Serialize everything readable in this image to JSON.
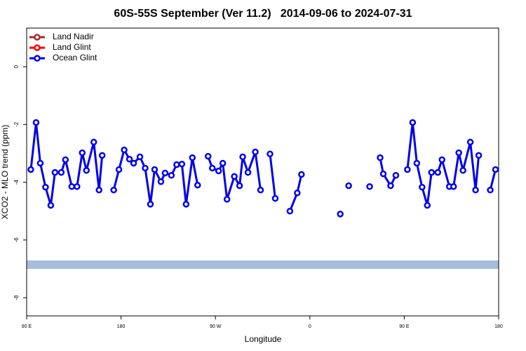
{
  "chart_data": {
    "type": "line",
    "title": "60S-55S September (Ver 11.2)   2014-09-06 to 2024-07-31",
    "x_label": "Longitude",
    "y_label": "XCO2 - MLO trend (ppm)",
    "xlim": [
      90,
      540
    ],
    "ylim": [
      -8.63,
      1.34
    ],
    "xticks": [
      {
        "value": 90,
        "label": "90 E"
      },
      {
        "value": 180,
        "label": "180"
      },
      {
        "value": 270,
        "label": "90 W"
      },
      {
        "value": 360,
        "label": "0"
      },
      {
        "value": 450,
        "label": "90 E"
      },
      {
        "value": 540,
        "label": "180"
      }
    ],
    "yticks": [
      0,
      -2,
      -4,
      -6,
      -8
    ],
    "band": {
      "ylim": [
        -7.0,
        -6.71
      ],
      "color": "#a6bddb"
    },
    "legend": "top-left",
    "series": [
      {
        "name": "Land Nadir",
        "color": "#a52a2a",
        "x": [],
        "values": []
      },
      {
        "name": "Land Glint",
        "color": "#ff0000",
        "x": [],
        "values": []
      },
      {
        "name": "Ocean Glint",
        "color": "#0000ee",
        "x": [
          94,
          99,
          103,
          108,
          113,
          117,
          123,
          127,
          133,
          138,
          143,
          147,
          154,
          159,
          162,
          null,
          173,
          178,
          183,
          188,
          192,
          198,
          203,
          208,
          212,
          218,
          222,
          228,
          233,
          238,
          242,
          248,
          253,
          null,
          263,
          267,
          273,
          277,
          281,
          288,
          293,
          296,
          301,
          308,
          313,
          null,
          322,
          327,
          null,
          341,
          348,
          352,
          null,
          389,
          null,
          397,
          null,
          417,
          null,
          427,
          430,
          437,
          442,
          null,
          453,
          458,
          462,
          467,
          472,
          476,
          482,
          486,
          493,
          497,
          502,
          506,
          513,
          518,
          521,
          null,
          532,
          537
        ],
        "values": [
          -3.56,
          -1.93,
          -3.34,
          -4.17,
          -4.8,
          -3.66,
          -3.66,
          -3.22,
          -4.15,
          -4.15,
          -2.98,
          -3.59,
          -2.61,
          -4.27,
          -3.07,
          null,
          -4.27,
          -3.56,
          -2.88,
          -3.2,
          -3.34,
          -3.12,
          -3.51,
          -4.76,
          -3.56,
          -3.98,
          -3.68,
          -3.76,
          -3.39,
          -3.37,
          -4.76,
          -3.15,
          -4.1,
          null,
          -3.1,
          -3.51,
          -3.61,
          -3.34,
          -4.59,
          -3.8,
          -4.12,
          -3.12,
          -3.66,
          -2.95,
          -4.27,
          null,
          -3.02,
          -4.56,
          null,
          -5.0,
          -4.37,
          -3.73,
          null,
          -5.1,
          null,
          -4.12,
          null,
          -4.15,
          null,
          -3.15,
          -3.71,
          -4.12,
          -3.76,
          null,
          -3.56,
          -1.93,
          -3.34,
          -4.17,
          -4.8,
          -3.66,
          -3.66,
          -3.22,
          -4.15,
          -4.15,
          -2.98,
          -3.59,
          -2.61,
          -4.27,
          -3.07,
          null,
          -4.27,
          -3.56
        ]
      }
    ]
  }
}
